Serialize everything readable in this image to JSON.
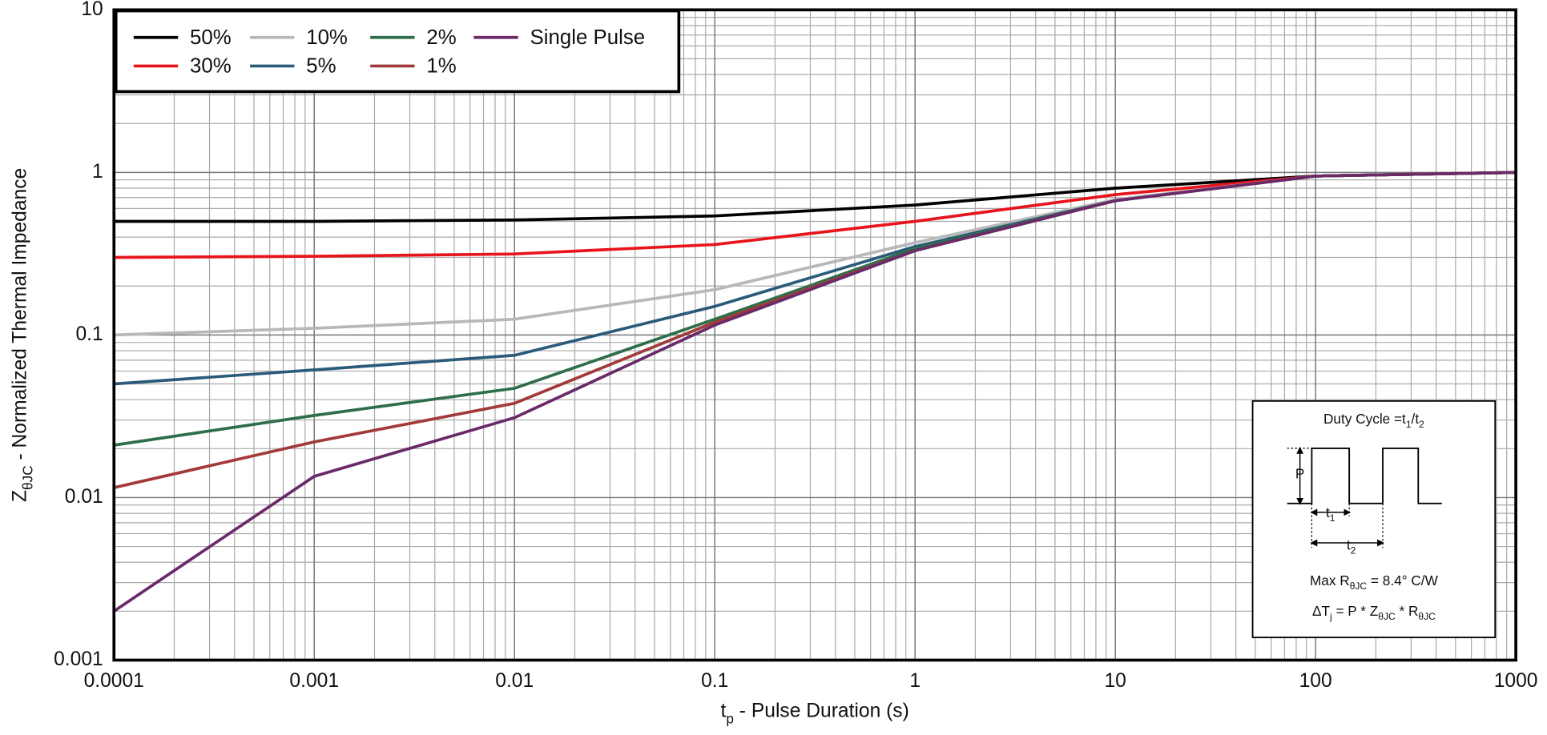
{
  "chart_data": {
    "type": "line",
    "log_x": true,
    "log_y": true,
    "grid": true,
    "minor_grid": true,
    "x": [
      0.0001,
      0.001,
      0.01,
      0.1,
      1,
      10,
      100,
      1000
    ],
    "xlim": [
      0.0001,
      1000
    ],
    "xticks": [
      0.0001,
      0.001,
      0.01,
      0.1,
      1,
      10,
      100,
      1000
    ],
    "ylim": [
      0.001,
      10
    ],
    "yticks": [
      0.001,
      0.01,
      0.1,
      1,
      10
    ],
    "xlabel": [
      "t",
      "p",
      " - Pulse Duration (s)"
    ],
    "ylabel": [
      "Z",
      "θJC",
      " - Normalized Thermal Impedance"
    ],
    "legend_position": "upper left",
    "legend_rows": 2,
    "series": [
      {
        "name": "50%",
        "color": "#000000",
        "values": [
          0.5,
          0.5,
          0.51,
          0.54,
          0.63,
          0.8,
          0.95,
          1.0
        ]
      },
      {
        "name": "30%",
        "color": "#e8141b",
        "values": [
          0.3,
          0.305,
          0.315,
          0.36,
          0.5,
          0.73,
          0.95,
          1.0
        ]
      },
      {
        "name": "10%",
        "color": "#b8b8b8",
        "values": [
          0.1,
          0.11,
          0.125,
          0.19,
          0.37,
          0.68,
          0.95,
          1.0
        ]
      },
      {
        "name": "5%",
        "color": "#2a5b7a",
        "values": [
          0.05,
          0.061,
          0.075,
          0.15,
          0.35,
          0.67,
          0.95,
          1.0
        ]
      },
      {
        "name": "2%",
        "color": "#2e6e4a",
        "values": [
          0.021,
          0.032,
          0.047,
          0.125,
          0.34,
          0.67,
          0.95,
          1.0
        ]
      },
      {
        "name": "1%",
        "color": "#a33a3a",
        "values": [
          0.0115,
          0.022,
          0.038,
          0.12,
          0.33,
          0.67,
          0.95,
          1.0
        ]
      },
      {
        "name": "Single Pulse",
        "color": "#6a2a6a",
        "values": [
          0.002,
          0.0135,
          0.031,
          0.115,
          0.33,
          0.67,
          0.95,
          1.0
        ]
      }
    ],
    "annotation": {
      "title": [
        "Duty Cycle =t",
        "1",
        "/t",
        "2"
      ],
      "p": "P",
      "t1": [
        "t",
        "1"
      ],
      "t2": [
        "t",
        "2"
      ],
      "rmax": [
        "Max R",
        "θJC",
        " = 8.4° C/W"
      ],
      "dtj": [
        "ΔT",
        "j",
        " = P * Z",
        "θJC",
        " * R",
        "θJC"
      ]
    }
  }
}
